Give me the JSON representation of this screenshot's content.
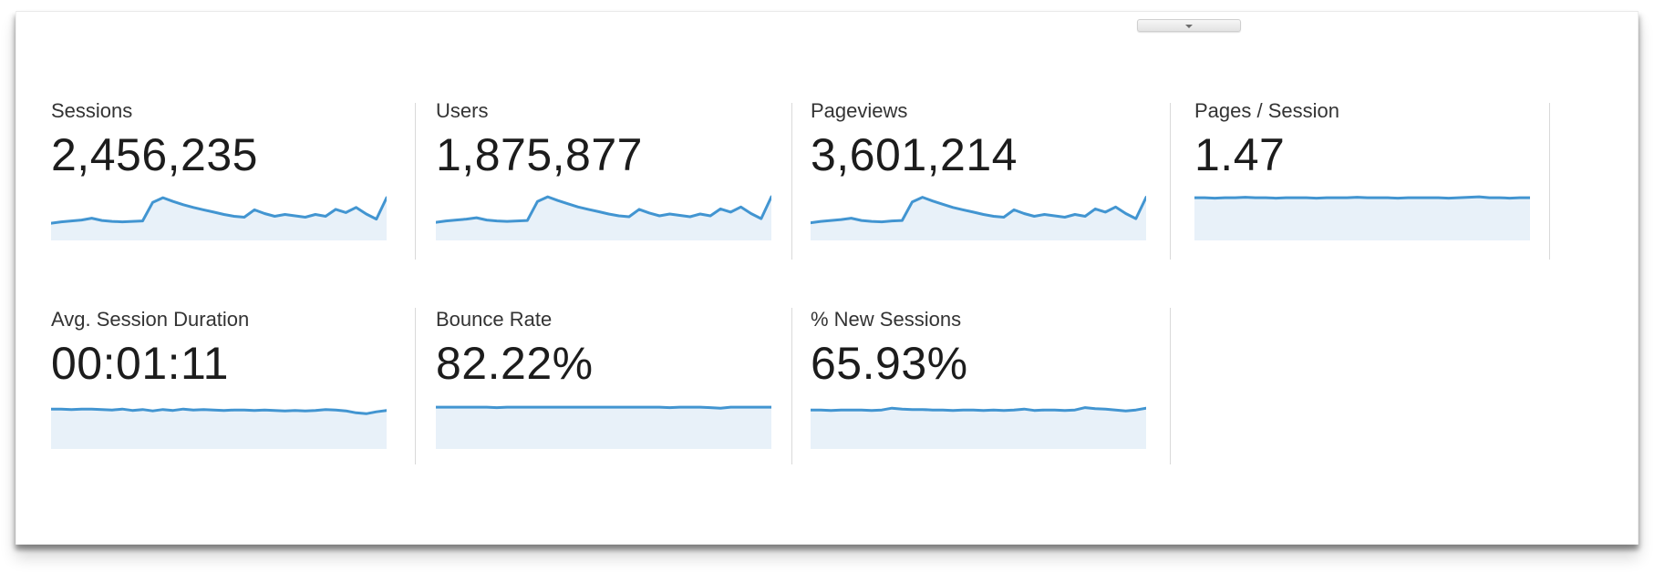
{
  "panel": {
    "type": "analytics-metrics-summary",
    "collapse_button": {
      "icon": "chevron-down-icon"
    }
  },
  "colors": {
    "spark_line": "#4295d1",
    "spark_fill": "#e8f1f9",
    "divider": "#d9d9d9",
    "label_text": "#333333",
    "value_text": "#1c1c1c"
  },
  "metrics": [
    {
      "id": "sessions",
      "label": "Sessions",
      "value": "2,456,235",
      "sparkline": {
        "type": "area",
        "points": [
          33,
          36,
          38,
          40,
          44,
          39,
          37,
          36,
          37,
          38,
          78,
          88,
          80,
          73,
          67,
          62,
          57,
          52,
          48,
          46,
          62,
          54,
          48,
          52,
          49,
          46,
          52,
          48,
          63,
          56,
          67,
          53,
          42,
          88
        ]
      }
    },
    {
      "id": "users",
      "label": "Users",
      "value": "1,875,877",
      "sparkline": {
        "type": "area",
        "points": [
          35,
          38,
          40,
          42,
          45,
          40,
          38,
          37,
          38,
          39,
          80,
          90,
          82,
          75,
          68,
          63,
          58,
          53,
          49,
          47,
          63,
          55,
          49,
          53,
          50,
          47,
          53,
          49,
          64,
          57,
          68,
          54,
          43,
          90
        ]
      }
    },
    {
      "id": "pageviews",
      "label": "Pageviews",
      "value": "3,601,214",
      "sparkline": {
        "type": "area",
        "points": [
          34,
          37,
          39,
          41,
          44,
          39,
          37,
          36,
          38,
          39,
          79,
          89,
          81,
          74,
          67,
          62,
          57,
          52,
          48,
          46,
          62,
          54,
          48,
          52,
          49,
          46,
          52,
          48,
          64,
          57,
          68,
          54,
          43,
          89
        ]
      }
    },
    {
      "id": "pages-per-session",
      "label": "Pages / Session",
      "value": "1.47",
      "sparkline": {
        "type": "area",
        "points": [
          88,
          88,
          87,
          88,
          88,
          89,
          88,
          88,
          87,
          88,
          88,
          88,
          87,
          88,
          88,
          88,
          89,
          88,
          88,
          88,
          87,
          88,
          88,
          88,
          88,
          87,
          88,
          89,
          90,
          88,
          88,
          87,
          88,
          88
        ]
      }
    },
    {
      "id": "avg-session-duration",
      "label": "Avg. Session Duration",
      "value": "00:01:11",
      "sparkline": {
        "type": "area",
        "points": [
          82,
          82,
          81,
          82,
          82,
          81,
          80,
          82,
          79,
          81,
          78,
          81,
          79,
          82,
          80,
          81,
          80,
          79,
          80,
          80,
          79,
          80,
          79,
          78,
          79,
          78,
          79,
          81,
          80,
          78,
          74,
          72,
          76,
          79
        ]
      }
    },
    {
      "id": "bounce-rate",
      "label": "Bounce Rate",
      "value": "82.22%",
      "sparkline": {
        "type": "area",
        "points": [
          86,
          86,
          86,
          86,
          86,
          86,
          85,
          86,
          86,
          86,
          86,
          86,
          86,
          86,
          86,
          86,
          86,
          86,
          86,
          86,
          86,
          86,
          86,
          85,
          86,
          86,
          86,
          85,
          84,
          86,
          86,
          86,
          86,
          86
        ]
      }
    },
    {
      "id": "percent-new-sessions",
      "label": "% New Sessions",
      "value": "65.93%",
      "sparkline": {
        "type": "area",
        "points": [
          80,
          80,
          79,
          80,
          80,
          80,
          79,
          80,
          84,
          82,
          81,
          81,
          80,
          80,
          79,
          80,
          80,
          79,
          80,
          79,
          80,
          82,
          79,
          80,
          80,
          79,
          80,
          85,
          83,
          82,
          80,
          78,
          80,
          84
        ]
      }
    }
  ]
}
